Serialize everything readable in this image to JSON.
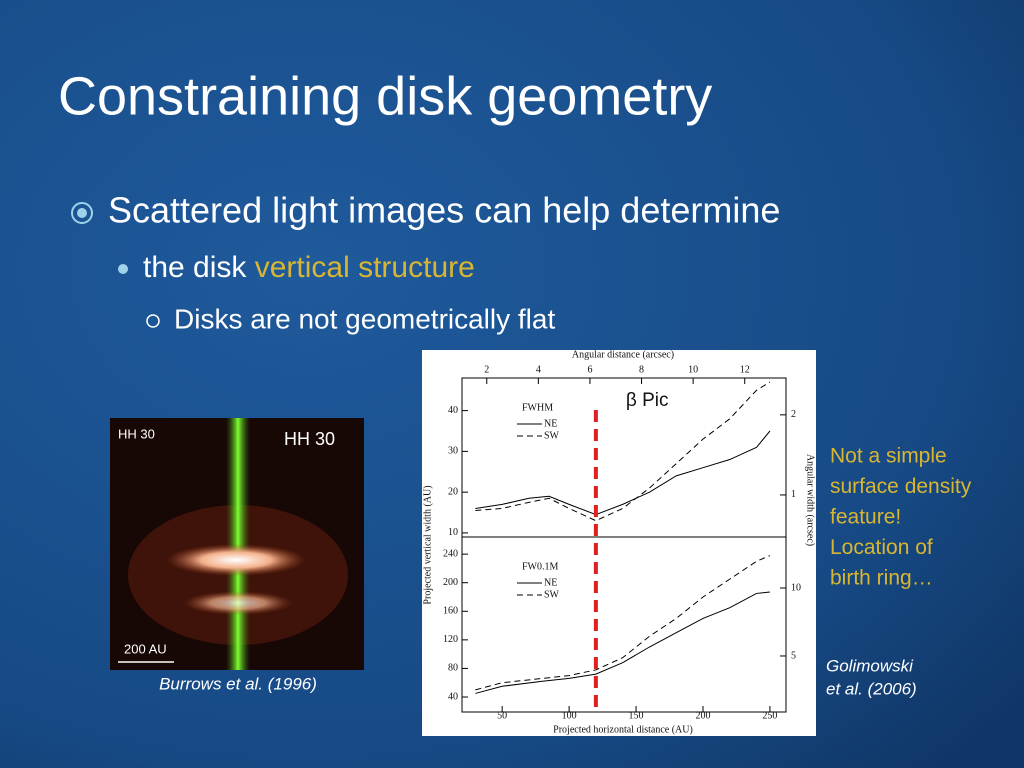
{
  "title": "Constraining disk geometry",
  "bullets": [
    {
      "text": "Scattered light images can help determine"
    },
    {
      "text": "the disk ",
      "highlight": "vertical structure"
    },
    {
      "text": "Disks are not geometrically flat"
    }
  ],
  "left_image": {
    "corner_label": "HH 30",
    "label": "HH 30",
    "scale_label": "200 AU",
    "caption": "Burrows et al. (1996)"
  },
  "note": [
    "Not a simple",
    "surface density",
    "feature!",
    "Location of",
    "birth ring…"
  ],
  "citation": [
    "Golimowski",
    "et al. (2006)"
  ],
  "figure": {
    "top_axis_label": "Angular distance (arcsec)",
    "x_label": "Projected horizontal distance (AU)",
    "y_label": "Projected vertical width (AU)",
    "y2_label": "Angular width (arcsec)",
    "annotation": "β Pic",
    "marker_x": 120,
    "xlim": [
      20,
      262
    ],
    "xticks": [
      50,
      100,
      150,
      200,
      250
    ],
    "x2lim": [
      1.04,
      13.6
    ],
    "x2ticks": [
      2,
      4,
      6,
      8,
      10,
      12
    ],
    "panels": [
      {
        "label": "FWHM",
        "ylim": [
          9,
          48
        ],
        "yticks": [
          10,
          20,
          30,
          40
        ],
        "y2lim": [
          0.475,
          2.46
        ],
        "y2ticks": [
          1,
          2
        ],
        "x": [
          30,
          50,
          70,
          85,
          100,
          120,
          140,
          160,
          180,
          200,
          220,
          240,
          250
        ],
        "series": [
          {
            "name": "NE",
            "style": "solid",
            "values": [
              16,
              17,
              18.5,
              19,
              17,
              14.5,
              17,
              20,
              24,
              26,
              28,
              31,
              35
            ]
          },
          {
            "name": "SW",
            "style": "dashed",
            "values": [
              15.5,
              16,
              17.5,
              18.5,
              16,
              13,
              16,
              21,
              27,
              33,
              38,
              45,
              47
            ]
          }
        ]
      },
      {
        "label": "FW0.1M",
        "ylim": [
          19,
          264
        ],
        "yticks": [
          40,
          80,
          120,
          160,
          200,
          240
        ],
        "y2lim": [
          0.88,
          13.75
        ],
        "y2ticks": [
          5,
          10
        ],
        "x": [
          30,
          50,
          80,
          100,
          120,
          140,
          160,
          180,
          200,
          220,
          240,
          250
        ],
        "series": [
          {
            "name": "NE",
            "style": "solid",
            "values": [
              45,
              55,
              62,
              66,
              72,
              88,
              110,
              130,
              150,
              165,
              185,
              187
            ]
          },
          {
            "name": "SW",
            "style": "dashed",
            "values": [
              50,
              60,
              66,
              70,
              78,
              95,
              125,
              150,
              180,
              205,
              230,
              238
            ]
          }
        ]
      }
    ]
  }
}
